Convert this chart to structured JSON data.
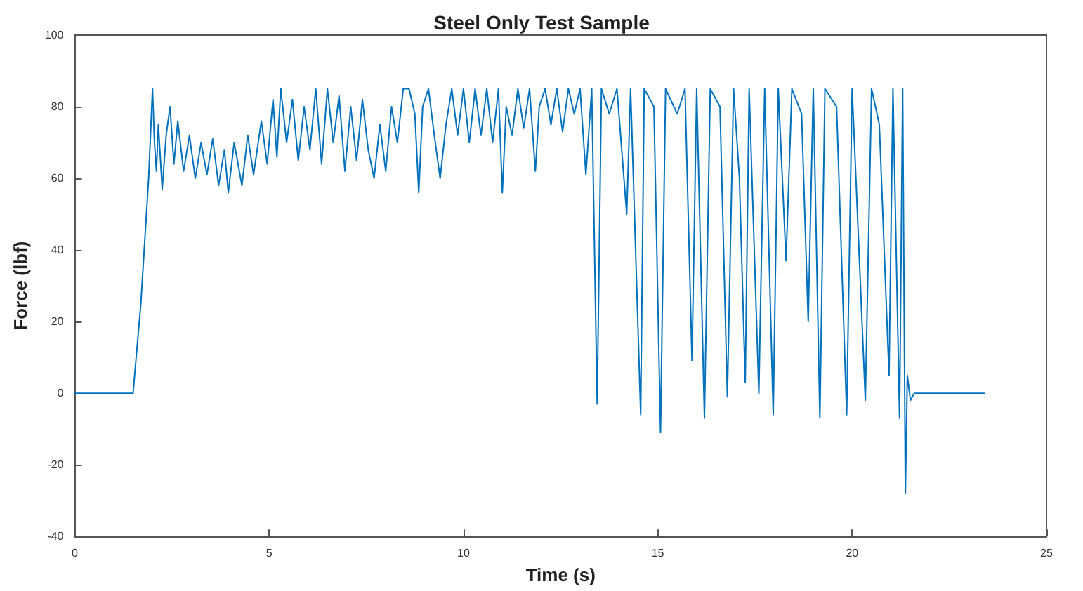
{
  "chart_data": {
    "type": "line",
    "title": "Steel Only Test Sample",
    "xlabel": "Time (s)",
    "ylabel": "Force (lbf)",
    "x": [
      0,
      0.7,
      1.5,
      1.7,
      1.9,
      2.0,
      2.05,
      2.1,
      2.15,
      2.25,
      2.35,
      2.45,
      2.55,
      2.65,
      2.8,
      2.95,
      3.1,
      3.25,
      3.4,
      3.55,
      3.7,
      3.85,
      3.95,
      4.1,
      4.3,
      4.45,
      4.6,
      4.8,
      4.95,
      5.1,
      5.2,
      5.3,
      5.45,
      5.6,
      5.75,
      5.9,
      6.05,
      6.2,
      6.35,
      6.5,
      6.65,
      6.8,
      6.95,
      7.1,
      7.25,
      7.4,
      7.55,
      7.7,
      7.85,
      8.0,
      8.15,
      8.3,
      8.45,
      8.6,
      8.75,
      8.85,
      8.95,
      9.1,
      9.25,
      9.4,
      9.55,
      9.7,
      9.85,
      10.0,
      10.15,
      10.3,
      10.45,
      10.6,
      10.75,
      10.9,
      11.0,
      11.1,
      11.25,
      11.4,
      11.55,
      11.7,
      11.85,
      11.95,
      12.1,
      12.25,
      12.4,
      12.55,
      12.7,
      12.85,
      13.0,
      13.15,
      13.3,
      13.44,
      13.55,
      13.75,
      13.95,
      14.2,
      14.3,
      14.56,
      14.65,
      14.9,
      15.07,
      15.2,
      15.5,
      15.7,
      15.88,
      16.0,
      16.2,
      16.35,
      16.6,
      16.79,
      16.95,
      17.1,
      17.25,
      17.35,
      17.6,
      17.75,
      17.97,
      18.1,
      18.3,
      18.45,
      18.7,
      18.87,
      19.0,
      19.17,
      19.3,
      19.6,
      19.86,
      20.0,
      20.34,
      20.5,
      20.7,
      20.95,
      21.05,
      21.22,
      21.3,
      21.37,
      21.42,
      21.5,
      21.6,
      22.5,
      23.4
    ],
    "series": [
      {
        "color": "#0072bd",
        "values": [
          0,
          0,
          0,
          25,
          60,
          85,
          70,
          62,
          75,
          57,
          72,
          80,
          64,
          76,
          62,
          72,
          60,
          70,
          61,
          71,
          58,
          68,
          56,
          70,
          58,
          72,
          61,
          76,
          64,
          82,
          66,
          85,
          70,
          82,
          65,
          80,
          68,
          85,
          64,
          85,
          70,
          83,
          62,
          80,
          65,
          82,
          68,
          60,
          75,
          62,
          80,
          70,
          85,
          85,
          78,
          56,
          80,
          85,
          72,
          60,
          75,
          85,
          72,
          85,
          70,
          85,
          72,
          85,
          70,
          85,
          56,
          80,
          72,
          85,
          74,
          85,
          62,
          80,
          85,
          75,
          85,
          73,
          85,
          78,
          85,
          61,
          85,
          -3,
          85,
          78,
          85,
          50,
          85,
          -6,
          85,
          80,
          -11,
          85,
          78,
          85,
          9,
          85,
          -7,
          85,
          80,
          -1,
          85,
          60,
          3,
          85,
          0,
          85,
          -6,
          85,
          37,
          85,
          78,
          20,
          85,
          -7,
          85,
          80,
          -6,
          85,
          -2,
          85,
          75,
          5,
          85,
          -7,
          85,
          -28,
          5,
          -2,
          0,
          0,
          0
        ]
      }
    ],
    "xlim": [
      0,
      25
    ],
    "xticks": [
      0,
      5,
      10,
      15,
      20,
      25
    ],
    "ylim": [
      -40,
      100
    ],
    "yticks": [
      -40,
      -20,
      0,
      20,
      40,
      60,
      80,
      100
    ],
    "grid": false,
    "marker": "none",
    "line_style": "solid"
  }
}
